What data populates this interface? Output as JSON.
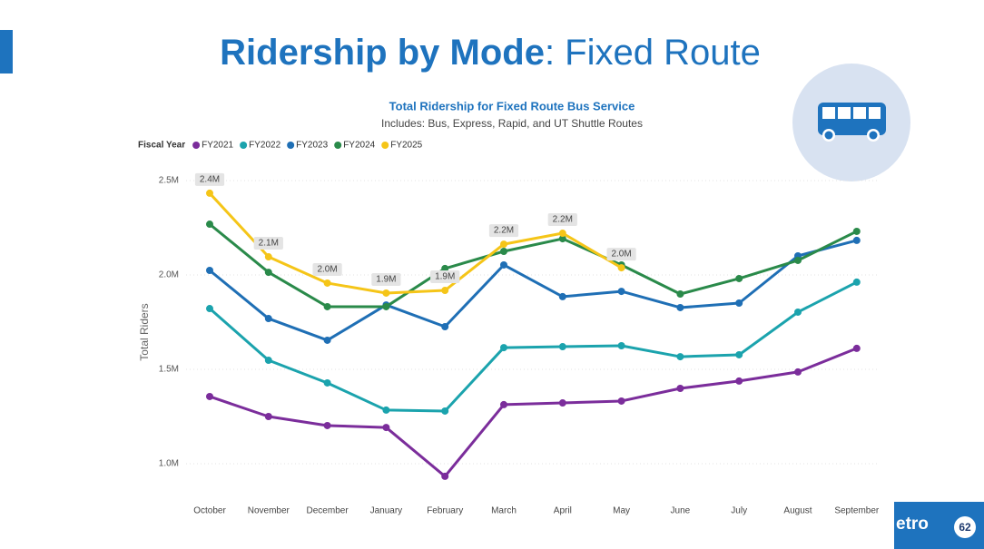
{
  "slide": {
    "title_bold": "Ridership by Mode",
    "title_rest": ": Fixed Route",
    "logo": "etro",
    "page": "62"
  },
  "chart_data": {
    "type": "line",
    "title": "Total Ridership for Fixed Route Bus Service",
    "subtitle": "Includes: Bus, Express, Rapid, and UT Shuttle Routes",
    "legend_title": "Fiscal Year",
    "y_label": "Total Riders",
    "categories": [
      "October",
      "November",
      "December",
      "January",
      "February",
      "March",
      "April",
      "May",
      "June",
      "July",
      "August",
      "September"
    ],
    "ylim": [
      850000,
      2550000
    ],
    "yticks": [
      {
        "value": 1000000,
        "label": "1.0M"
      },
      {
        "value": 1500000,
        "label": "1.5M"
      },
      {
        "value": 2000000,
        "label": "2.0M"
      },
      {
        "value": 2500000,
        "label": "2.5M"
      }
    ],
    "grid": true,
    "series": [
      {
        "name": "FY2021",
        "color": "#7b2d9b",
        "values": [
          1356000,
          1250000,
          1202000,
          1192000,
          933000,
          1313000,
          1322000,
          1332000,
          1399000,
          1438000,
          1486000,
          1611000
        ]
      },
      {
        "name": "FY2022",
        "color": "#1ba3ad",
        "values": [
          1822000,
          1548000,
          1428000,
          1284000,
          1279000,
          1615000,
          1620000,
          1625000,
          1567000,
          1577000,
          1803000,
          1962000
        ]
      },
      {
        "name": "FY2023",
        "color": "#1f6fb5",
        "values": [
          2024000,
          1769000,
          1654000,
          1841000,
          1726000,
          2053000,
          1885000,
          1913000,
          1827000,
          1851000,
          2101000,
          2183000
        ]
      },
      {
        "name": "FY2024",
        "color": "#2a8a4a",
        "values": [
          2269000,
          2014000,
          1832000,
          1832000,
          2034000,
          2125000,
          2192000,
          2053000,
          1899000,
          1981000,
          2077000,
          2231000
        ]
      },
      {
        "name": "FY2025",
        "color": "#f5c518",
        "values": [
          2433000,
          2096000,
          1957000,
          1904000,
          1918000,
          2163000,
          2221000,
          2038000,
          null,
          null,
          null,
          null
        ],
        "value_labels": [
          "2.4M",
          "2.1M",
          "2.0M",
          "1.9M",
          "1.9M",
          "2.2M",
          "2.2M",
          "2.0M",
          null,
          null,
          null,
          null
        ]
      }
    ]
  }
}
